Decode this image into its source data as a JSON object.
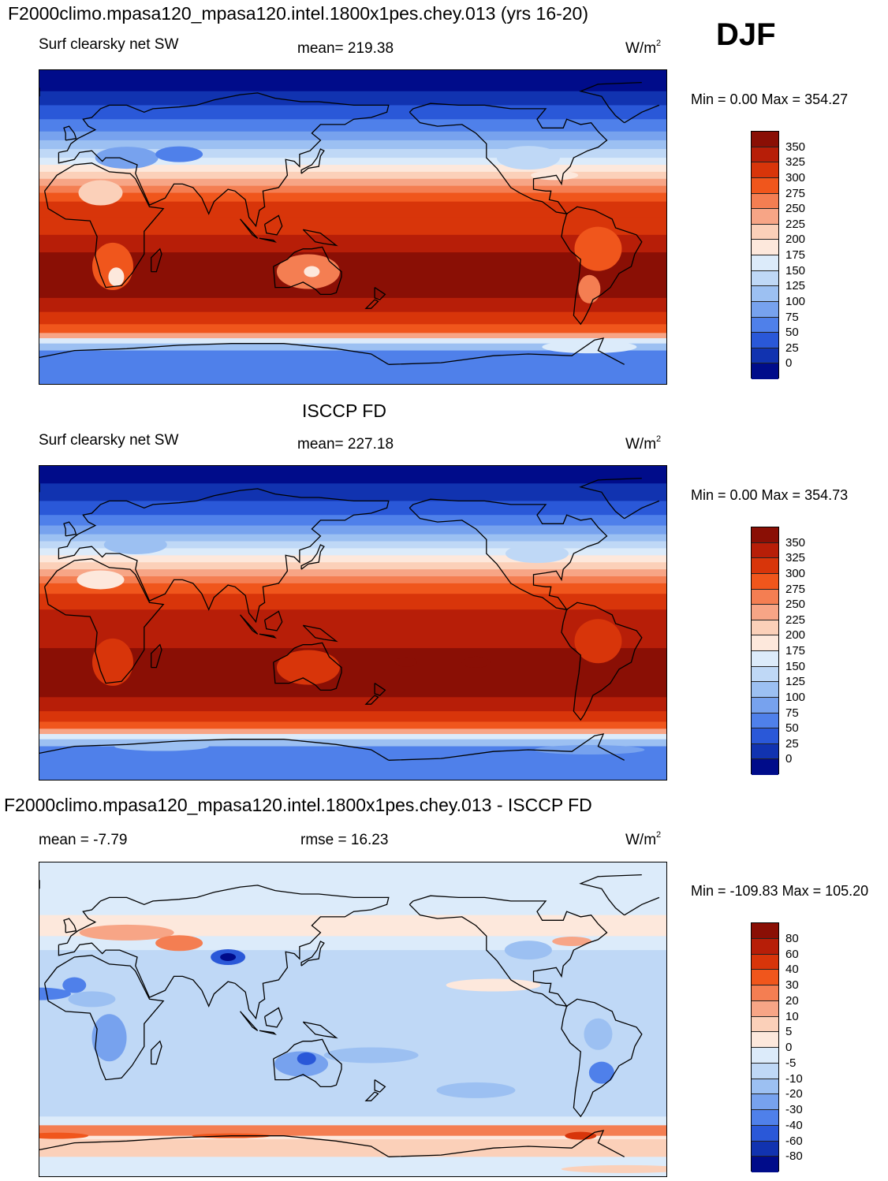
{
  "season": "DJF",
  "panels": [
    {
      "title": "F2000climo.mpasa120_mpasa120.intel.1800x1pes.chey.013 (yrs 16-20)",
      "variable": "Surf clearsky net SW",
      "stat_left": "",
      "stat_center": "mean= 219.38",
      "units": "W/m",
      "units_sup": "2",
      "minmax": "Min =   0.00 Max = 354.27",
      "colorbar_labels": [
        "350",
        "325",
        "300",
        "275",
        "250",
        "225",
        "200",
        "175",
        "150",
        "125",
        "100",
        "75",
        "50",
        "25",
        "0"
      ]
    },
    {
      "title": "ISCCP FD",
      "variable": "Surf clearsky net SW",
      "stat_left": "",
      "stat_center": "mean= 227.18",
      "units": "W/m",
      "units_sup": "2",
      "minmax": "Min =   0.00 Max = 354.73",
      "colorbar_labels": [
        "350",
        "325",
        "300",
        "275",
        "250",
        "225",
        "200",
        "175",
        "150",
        "125",
        "100",
        "75",
        "50",
        "25",
        "0"
      ]
    },
    {
      "title": "F2000climo.mpasa120_mpasa120.intel.1800x1pes.chey.013 - ISCCP FD",
      "variable": "",
      "stat_left": "mean =  -7.79",
      "stat_center": "rmse =  16.23",
      "units": "W/m",
      "units_sup": "2",
      "minmax": "Min = -109.83 Max = 105.20",
      "colorbar_labels": [
        "80",
        "60",
        "40",
        "30",
        "20",
        "10",
        "5",
        "0",
        "-5",
        "-10",
        "-20",
        "-30",
        "-40",
        "-60",
        "-80"
      ]
    }
  ],
  "colors": {
    "abs_scale": [
      "#8a0f05",
      "#b71e08",
      "#d8350a",
      "#f0561c",
      "#f47e52",
      "#f7a586",
      "#fbd0b9",
      "#fde8dc",
      "#dcebfa",
      "#bfd8f6",
      "#9cc0f2",
      "#77a2ee",
      "#4f80ea",
      "#2a58d8",
      "#1133b0",
      "#000c8a"
    ],
    "diff_scale": [
      "#8a0f05",
      "#b71e08",
      "#d8350a",
      "#f0561c",
      "#f47e52",
      "#f7a586",
      "#fbd0b9",
      "#fde8dc",
      "#dcebfa",
      "#bfd8f6",
      "#9cc0f2",
      "#77a2ee",
      "#4f80ea",
      "#2a58d8",
      "#1133b0",
      "#000c8a"
    ]
  },
  "chart_data": [
    {
      "type": "heatmap",
      "description_of_field": "model surface clear-sky net shortwave, DJF",
      "title": "F2000climo.mpasa120_mpasa120.intel.1800x1pes.chey.013 (yrs 16-20)",
      "mean": 219.38,
      "min": 0.0,
      "max": 354.27,
      "units": "W/m2",
      "contour_levels": [
        0,
        25,
        50,
        75,
        100,
        125,
        150,
        175,
        200,
        225,
        250,
        275,
        300,
        325,
        350
      ],
      "lat": [
        90,
        75,
        60,
        45,
        30,
        15,
        0,
        -15,
        -30,
        -45,
        -60,
        -75,
        -90
      ],
      "zonal_mean_approx": [
        0,
        10,
        40,
        90,
        170,
        250,
        300,
        330,
        345,
        345,
        300,
        60,
        50
      ]
    },
    {
      "type": "heatmap",
      "title": "ISCCP FD",
      "mean": 227.18,
      "min": 0.0,
      "max": 354.73,
      "units": "W/m2",
      "contour_levels": [
        0,
        25,
        50,
        75,
        100,
        125,
        150,
        175,
        200,
        225,
        250,
        275,
        300,
        325,
        350
      ],
      "lat": [
        90,
        75,
        60,
        45,
        30,
        15,
        0,
        -15,
        -30,
        -45,
        -60,
        -75,
        -90
      ],
      "zonal_mean_approx": [
        0,
        10,
        45,
        100,
        180,
        255,
        305,
        335,
        345,
        340,
        290,
        70,
        50
      ]
    },
    {
      "type": "heatmap",
      "title": "F2000climo.mpasa120_mpasa120.intel.1800x1pes.chey.013 - ISCCP FD",
      "mean": -7.79,
      "rmse": 16.23,
      "min": -109.83,
      "max": 105.2,
      "units": "W/m2",
      "contour_levels": [
        -80,
        -60,
        -40,
        -30,
        -20,
        -10,
        -5,
        0,
        5,
        10,
        20,
        30,
        40,
        60,
        80
      ],
      "lat": [
        90,
        75,
        60,
        45,
        30,
        15,
        0,
        -15,
        -30,
        -45,
        -60,
        -75,
        -90
      ],
      "zonal_mean_approx": [
        0,
        -2,
        5,
        3,
        -8,
        -12,
        -10,
        -12,
        -15,
        -10,
        30,
        25,
        0
      ]
    }
  ]
}
